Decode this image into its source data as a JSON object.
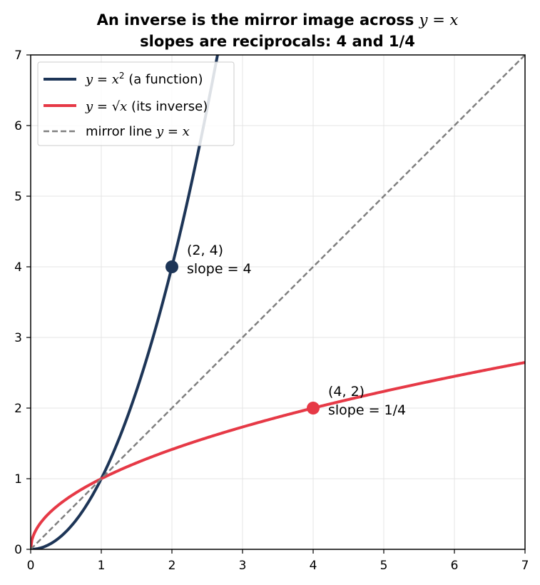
{
  "chart_data": {
    "type": "line",
    "title_line1_prefix": "An inverse is the mirror image across ",
    "title_line1_math": "y = x",
    "title_line2": "slopes are reciprocals: 4 and 1/4",
    "xlim": [
      0,
      7
    ],
    "ylim": [
      0,
      7
    ],
    "x_ticks": [
      "0",
      "1",
      "2",
      "3",
      "4",
      "5",
      "6",
      "7"
    ],
    "y_ticks": [
      "0",
      "1",
      "2",
      "3",
      "4",
      "5",
      "6",
      "7"
    ],
    "grid": true,
    "legend_position": "top-left",
    "series": [
      {
        "name": "y = x² (a function)",
        "legend_math": "y = x",
        "legend_sup": "2",
        "legend_suffix": " (a function)",
        "function": "x^2",
        "color": "#1d3557",
        "style": "solid",
        "x": [
          0,
          0.25,
          0.5,
          0.75,
          1,
          1.25,
          1.5,
          1.75,
          2,
          2.25,
          2.5,
          2.65
        ],
        "y": [
          0,
          0.0625,
          0.25,
          0.5625,
          1,
          1.5625,
          2.25,
          3.0625,
          4,
          5.0625,
          6.25,
          7.02
        ]
      },
      {
        "name": "y = √x (its inverse)",
        "legend_math": "y = √x",
        "legend_suffix": " (its inverse)",
        "function": "sqrt(x)",
        "color": "#e63946",
        "style": "solid",
        "x": [
          0,
          0.25,
          0.5,
          1,
          2,
          3,
          4,
          5,
          6,
          7
        ],
        "y": [
          0,
          0.5,
          0.707,
          1,
          1.414,
          1.732,
          2,
          2.236,
          2.449,
          2.646
        ]
      },
      {
        "name": "mirror line y = x",
        "legend_prefix": "mirror line ",
        "legend_math": "y = x",
        "function": "x",
        "color": "#808080",
        "style": "dashed",
        "x": [
          0,
          7
        ],
        "y": [
          0,
          7
        ]
      }
    ],
    "points": [
      {
        "x": 2,
        "y": 4,
        "color": "#1d3557",
        "label_line1": "(2, 4)",
        "label_line2": "slope = 4"
      },
      {
        "x": 4,
        "y": 2,
        "color": "#e63946",
        "label_line1": "(4, 2)",
        "label_line2": "slope = 1/4"
      }
    ]
  }
}
